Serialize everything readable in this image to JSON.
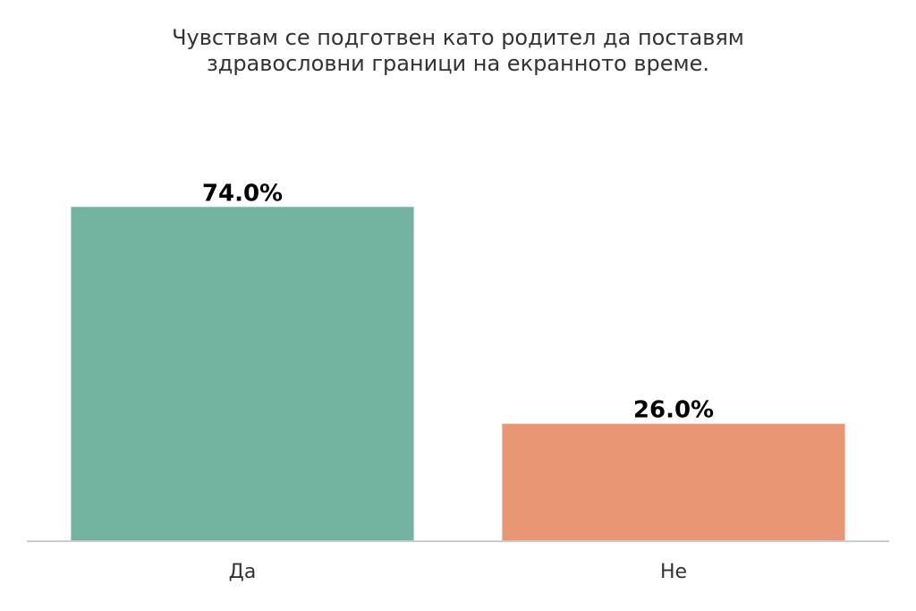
{
  "chart_data": {
    "type": "bar",
    "title": "Чувствам се подготвен като родител да поставям здравословни граници на екранното време.",
    "title_lines": [
      "Чувствам се подготвен като родител да поставям",
      "здравословни граници на екранното време."
    ],
    "categories": [
      "Да",
      "Не"
    ],
    "values": [
      74.0,
      26.0
    ],
    "value_labels": [
      "74.0%",
      "26.0%"
    ],
    "colors": [
      "#73b4a0",
      "#e89674"
    ],
    "xlabel": "",
    "ylabel": "",
    "ylim": [
      0,
      100
    ],
    "grid": false,
    "legend": "none",
    "axis_color": "#cccccc"
  }
}
